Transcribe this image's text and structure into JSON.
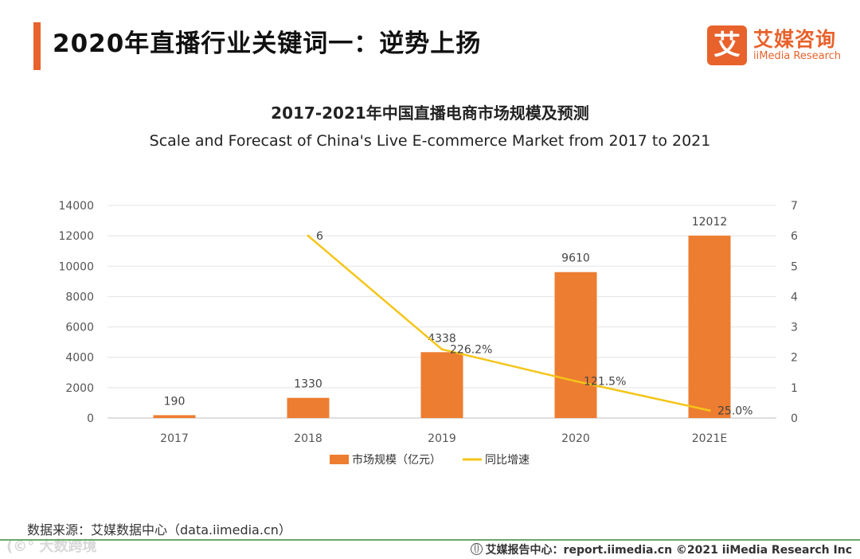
{
  "header": {
    "title": "2020年直播行业关键词一：逆势上扬",
    "logo_mark": "艾",
    "logo_cn": "艾媒咨询",
    "logo_en": "iiMedia Research"
  },
  "chart_data": {
    "type": "bar",
    "title": "2017-2021年中国直播电商市场规模及预测",
    "subtitle": "Scale and Forecast of China's Live E-commerce Market from 2017 to 2021",
    "categories": [
      "2017",
      "2018",
      "2019",
      "2020",
      "2021E"
    ],
    "series": [
      {
        "name": "市场规模（亿元）",
        "type": "bar",
        "axis": "left",
        "color": "#ed7d31",
        "values": [
          190,
          1330,
          4338,
          9610,
          12012
        ],
        "labels": [
          "190",
          "1330",
          "4338",
          "9610",
          "12012"
        ]
      },
      {
        "name": "同比增速",
        "type": "line",
        "axis": "right",
        "color": "#f5c518",
        "values": [
          null,
          6,
          2.262,
          1.215,
          0.25
        ],
        "labels": [
          "",
          "6",
          "226.2%",
          "121.5%",
          "25.0%"
        ]
      }
    ],
    "y_left": {
      "min": 0,
      "max": 14000,
      "ticks": [
        "0",
        "2000",
        "4000",
        "6000",
        "8000",
        "10000",
        "12000",
        "14000"
      ]
    },
    "y_right": {
      "min": 0,
      "max": 7,
      "ticks": [
        "0",
        "1",
        "2",
        "3",
        "4",
        "5",
        "6",
        "7"
      ]
    },
    "grid": true,
    "legend_position": "bottom"
  },
  "source": "数据来源：艾媒数据中心（data.iimedia.cn）",
  "watermark": "(©° 大数跨境",
  "footer": "艾媒报告中心：report.iimedia.cn ©2021 iiMedia Research Inc"
}
